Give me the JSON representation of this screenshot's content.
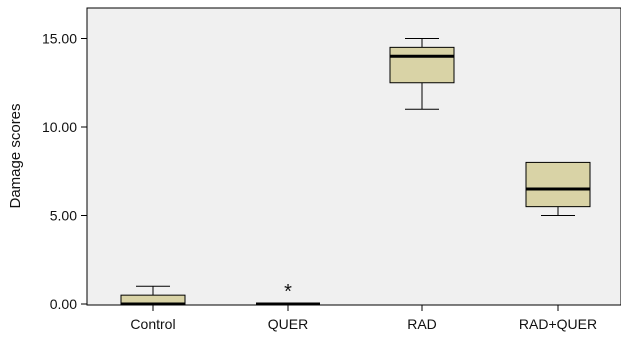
{
  "chart_data": {
    "type": "boxplot",
    "ylabel": "Damage scores",
    "ylim": [
      0,
      16.5
    ],
    "y_ticks": [
      0,
      5,
      10,
      15
    ],
    "y_tick_labels": [
      "0.00",
      "5.00",
      "10.00",
      "15.00"
    ],
    "grid": false,
    "colors": {
      "plot_background": "#f0f0f0",
      "box_fill": "#d9d3a6",
      "stroke": "#000000"
    },
    "categories": [
      "Control",
      "QUER",
      "RAD",
      "RAD+QUER"
    ],
    "boxes": [
      {
        "category": "Control",
        "whisker_low": 0,
        "q1": 0,
        "median": 0,
        "q3": 0.5,
        "whisker_high": 1,
        "outliers": []
      },
      {
        "category": "QUER",
        "whisker_low": 0,
        "q1": 0,
        "median": 0,
        "q3": 0,
        "whisker_high": 0,
        "outliers": [
          {
            "value": 0.5,
            "marker": "*"
          }
        ]
      },
      {
        "category": "RAD",
        "whisker_low": 11,
        "q1": 12.5,
        "median": 14,
        "q3": 14.5,
        "whisker_high": 15,
        "outliers": []
      },
      {
        "category": "RAD+QUER",
        "whisker_low": 5,
        "q1": 5.5,
        "median": 6.5,
        "q3": 8,
        "whisker_high": 8,
        "outliers": []
      }
    ]
  }
}
